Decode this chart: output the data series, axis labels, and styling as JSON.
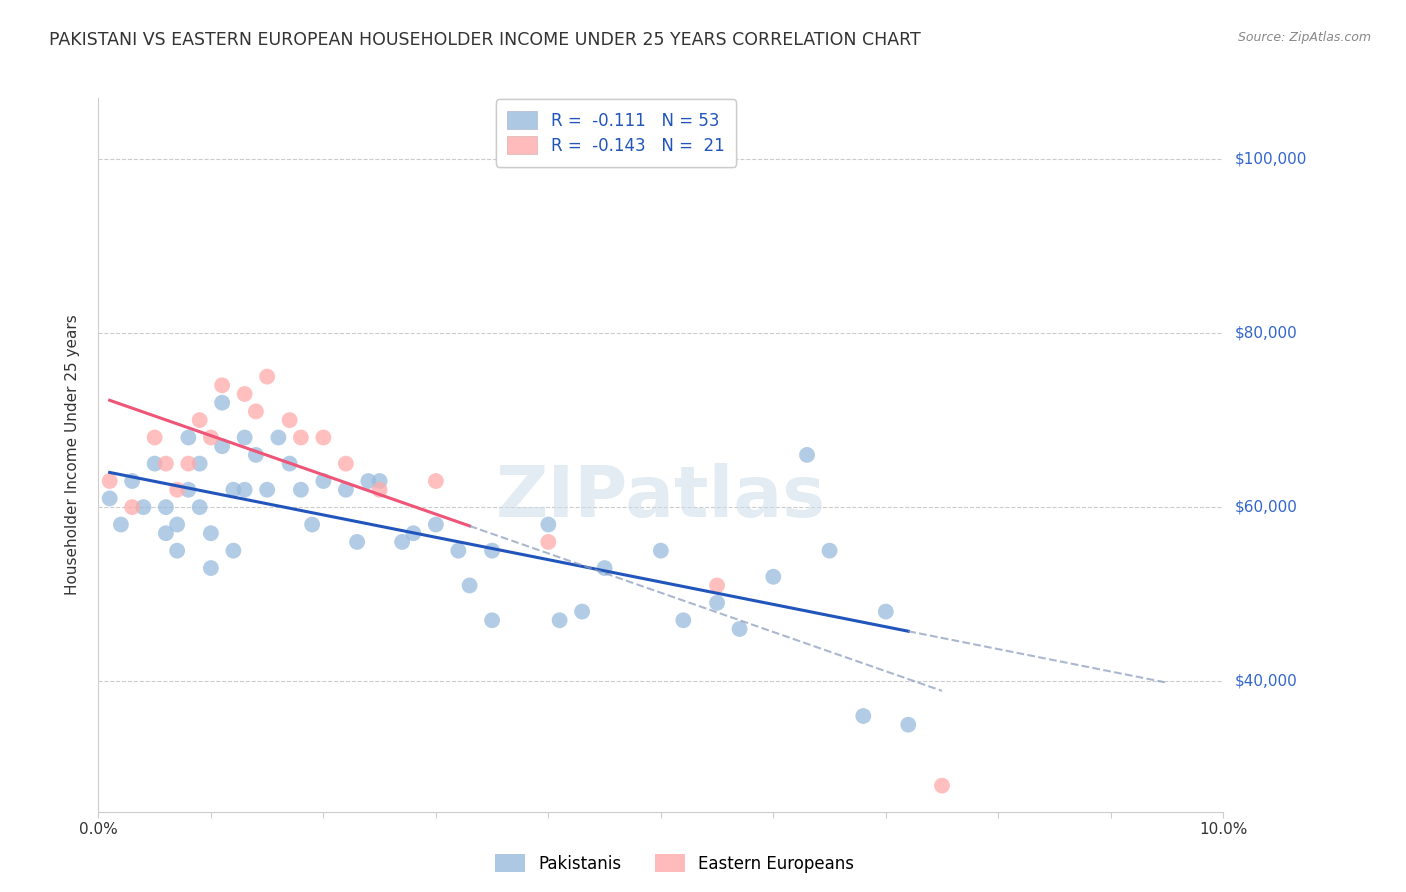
{
  "title": "PAKISTANI VS EASTERN EUROPEAN HOUSEHOLDER INCOME UNDER 25 YEARS CORRELATION CHART",
  "source": "Source: ZipAtlas.com",
  "ylabel": "Householder Income Under 25 years",
  "watermark": "ZIPatlas",
  "pakistani_color": "#99BBDD",
  "eastern_color": "#FFAAAA",
  "pakistani_line_color": "#2255BB",
  "eastern_line_color": "#EE5577",
  "dashed_line_color": "#8899BB",
  "background_color": "#FFFFFF",
  "grid_color": "#CCCCCC",
  "right_label_color": "#3366CC",
  "xlim": [
    0.0,
    0.1
  ],
  "ylim": [
    25000,
    107000
  ],
  "pakistani_x": [
    0.001,
    0.002,
    0.003,
    0.004,
    0.005,
    0.006,
    0.006,
    0.007,
    0.007,
    0.008,
    0.008,
    0.009,
    0.009,
    0.01,
    0.01,
    0.011,
    0.011,
    0.012,
    0.012,
    0.013,
    0.013,
    0.014,
    0.015,
    0.016,
    0.017,
    0.018,
    0.019,
    0.02,
    0.022,
    0.023,
    0.024,
    0.025,
    0.027,
    0.028,
    0.03,
    0.032,
    0.033,
    0.035,
    0.035,
    0.04,
    0.041,
    0.043,
    0.045,
    0.05,
    0.052,
    0.055,
    0.057,
    0.06,
    0.063,
    0.065,
    0.068,
    0.07,
    0.072
  ],
  "pakistani_y": [
    61000,
    58000,
    63000,
    60000,
    65000,
    57000,
    60000,
    55000,
    58000,
    68000,
    62000,
    65000,
    60000,
    57000,
    53000,
    72000,
    67000,
    62000,
    55000,
    68000,
    62000,
    66000,
    62000,
    68000,
    65000,
    62000,
    58000,
    63000,
    62000,
    56000,
    63000,
    63000,
    56000,
    57000,
    58000,
    55000,
    51000,
    55000,
    47000,
    58000,
    47000,
    48000,
    53000,
    55000,
    47000,
    49000,
    46000,
    52000,
    66000,
    55000,
    36000,
    48000,
    35000
  ],
  "eastern_x": [
    0.001,
    0.003,
    0.005,
    0.006,
    0.007,
    0.008,
    0.009,
    0.01,
    0.011,
    0.013,
    0.014,
    0.015,
    0.017,
    0.018,
    0.02,
    0.022,
    0.025,
    0.03,
    0.04,
    0.055,
    0.075
  ],
  "eastern_y": [
    63000,
    60000,
    68000,
    65000,
    62000,
    65000,
    70000,
    68000,
    74000,
    73000,
    71000,
    75000,
    70000,
    68000,
    68000,
    65000,
    62000,
    63000,
    56000,
    51000,
    28000
  ],
  "title_fontsize": 12.5,
  "axis_label_fontsize": 11,
  "tick_fontsize": 11,
  "legend_fontsize": 12,
  "watermark_fontsize": 52,
  "marker_size": 130,
  "legend_r1": "R =  -0.111   N = 53",
  "legend_r2": "R =  -0.143   N =  21"
}
